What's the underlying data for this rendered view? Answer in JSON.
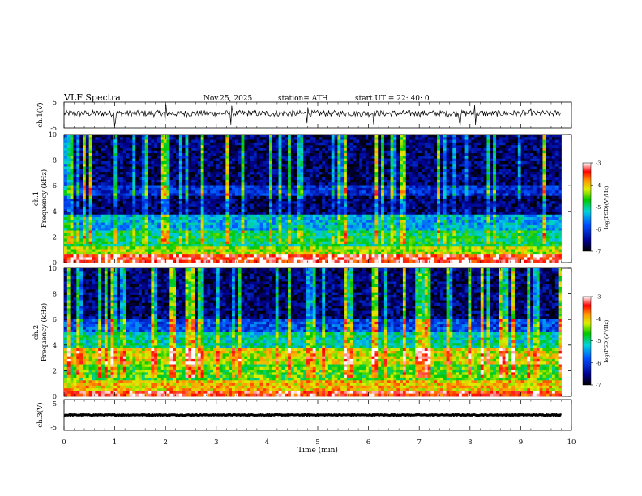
{
  "header": {
    "title": "VLF  Spectra",
    "date": "Nov.25, 2025",
    "station": "station= ATH",
    "start": "start  UT  =   22: 40: 0"
  },
  "chart_data": [
    {
      "type": "line",
      "name": "ch1-waveform",
      "ylabel": "ch.1(V)",
      "ylim": [
        -5,
        5
      ],
      "yticks": [
        "5",
        "-5"
      ],
      "x_range_min": [
        0,
        9.8
      ],
      "baseline_v": 0.6,
      "noise_amplitude_v": 1.2,
      "spikes_at_min": [
        1.0,
        2.0,
        3.3,
        4.8,
        6.1,
        7.8,
        8.1,
        9.2
      ]
    },
    {
      "type": "heatmap",
      "name": "ch1-spectrogram",
      "ylabel": "ch.1\nFrequency (kHz)",
      "ylim": [
        0,
        10
      ],
      "yticks": [
        "0",
        "2",
        "4",
        "6",
        "8",
        "10"
      ],
      "x_range_min": [
        0,
        9.8
      ],
      "colorbar": {
        "label": "log(PSD)(V²/Hz)",
        "range": [
          -7,
          -3
        ],
        "ticks": [
          "-3",
          "-4",
          "-5",
          "-6",
          "-7"
        ]
      },
      "bands_khz": [
        {
          "from": 0.0,
          "to": 0.6,
          "log_psd": -3.3
        },
        {
          "from": 0.6,
          "to": 1.3,
          "log_psd": -4.3
        },
        {
          "from": 1.3,
          "to": 2.4,
          "log_psd": -4.9
        },
        {
          "from": 2.4,
          "to": 3.8,
          "log_psd": -5.4
        },
        {
          "from": 3.8,
          "to": 5.2,
          "log_psd": -6.6
        },
        {
          "from": 5.2,
          "to": 6.0,
          "log_psd": -6.1
        },
        {
          "from": 6.0,
          "to": 10.0,
          "log_psd": -6.6
        }
      ]
    },
    {
      "type": "heatmap",
      "name": "ch2-spectrogram",
      "ylabel": "ch.2\nFrequency (kHz)",
      "ylim": [
        0,
        10
      ],
      "yticks": [
        "0",
        "2",
        "4",
        "6",
        "8",
        "10"
      ],
      "x_range_min": [
        0,
        9.8
      ],
      "colorbar": {
        "label": "log(PSD)(V²/Hz)",
        "range": [
          -7,
          -3
        ],
        "ticks": [
          "-3",
          "-4",
          "-5",
          "-6",
          "-7"
        ]
      },
      "bands_khz": [
        {
          "from": 0.0,
          "to": 0.5,
          "log_psd": -3.4
        },
        {
          "from": 0.5,
          "to": 1.2,
          "log_psd": -4.0
        },
        {
          "from": 1.2,
          "to": 2.6,
          "log_psd": -4.6
        },
        {
          "from": 2.6,
          "to": 3.8,
          "log_psd": -4.2
        },
        {
          "from": 3.8,
          "to": 4.9,
          "log_psd": -5.1
        },
        {
          "from": 4.9,
          "to": 6.0,
          "log_psd": -5.9
        },
        {
          "from": 6.0,
          "to": 10.0,
          "log_psd": -6.6
        }
      ]
    },
    {
      "type": "line",
      "name": "ch3-waveform",
      "ylabel": "ch.3(V)",
      "ylim": [
        -5,
        5
      ],
      "yticks": [
        "5",
        "-5"
      ],
      "x_range_min": [
        0,
        9.8
      ],
      "baseline_v": 0.0,
      "noise_amplitude_v": 0.15,
      "xlabel": "Time  (min)",
      "xlim": [
        0,
        10
      ],
      "xticks": [
        "0",
        "1",
        "2",
        "3",
        "4",
        "5",
        "6",
        "7",
        "8",
        "9",
        "10"
      ]
    }
  ]
}
